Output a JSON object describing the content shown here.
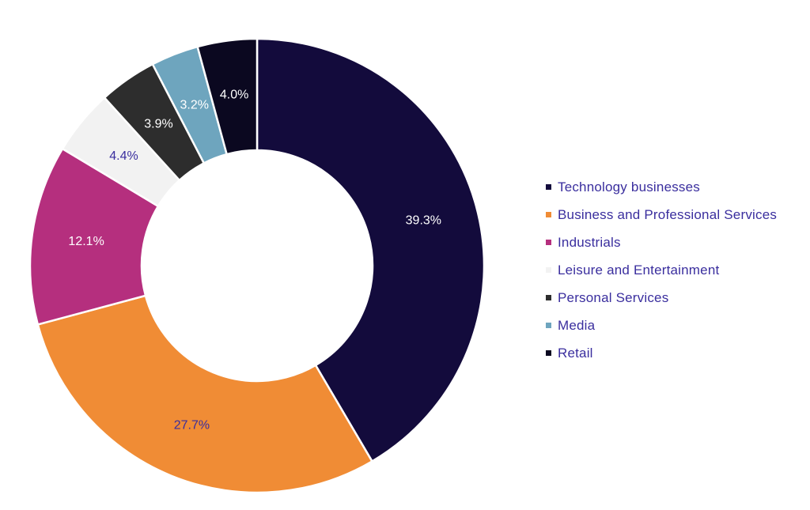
{
  "chart_data": {
    "type": "pie",
    "donut": true,
    "legend_position": "right",
    "slices": [
      {
        "name": "Technology businesses",
        "value": 39.3,
        "label": "39.3%",
        "color": "#130b3c",
        "label_color": "#ffffff"
      },
      {
        "name": "Business and Professional Services",
        "value": 27.7,
        "label": "27.7%",
        "color": "#f08c35",
        "label_color": "#3a2e9e"
      },
      {
        "name": "Industrials",
        "value": 12.1,
        "label": "12.1%",
        "color": "#b52f7e",
        "label_color": "#ffffff"
      },
      {
        "name": "Leisure and Entertainment",
        "value": 4.4,
        "label": "4.4%",
        "color": "#f2f2f2",
        "label_color": "#3a2e9e"
      },
      {
        "name": "Personal Services",
        "value": 3.9,
        "label": "3.9%",
        "color": "#2d2d2d",
        "label_color": "#ffffff"
      },
      {
        "name": "Media",
        "value": 3.2,
        "label": "3.2%",
        "color": "#6ea5be",
        "label_color": "#ffffff"
      },
      {
        "name": "Retail",
        "value": 4.0,
        "label": "4.0%",
        "color": "#0b0820",
        "label_color": "#ffffff"
      }
    ]
  }
}
